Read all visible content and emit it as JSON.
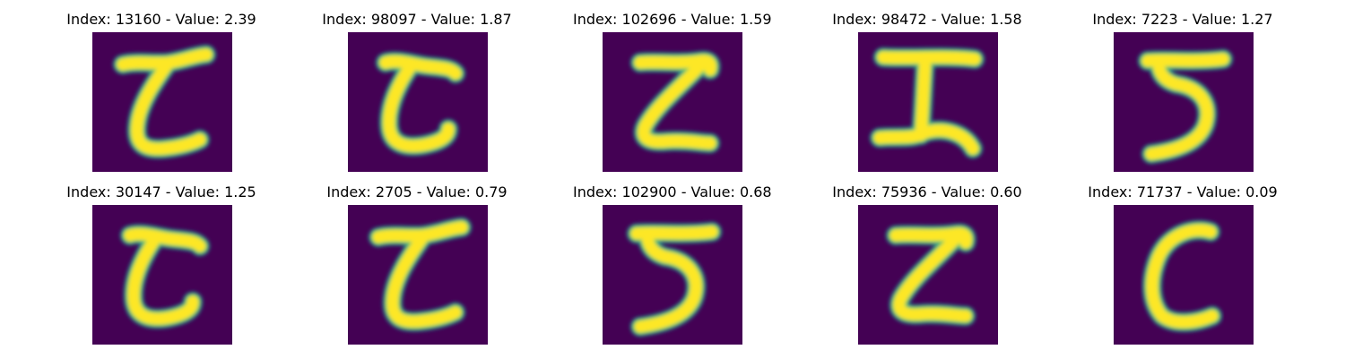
{
  "colors": {
    "background": "#440154",
    "stroke_edge": "#21918c",
    "stroke_core": "#fde725",
    "stroke_mid": "#5ec962"
  },
  "samples": [
    {
      "title": "Index: 13160 - Value: 2.39",
      "index": 13160,
      "value": 2.39,
      "glyph": "tilde-c"
    },
    {
      "title": "Index: 98097 - Value: 1.87",
      "index": 98097,
      "value": 1.87,
      "glyph": "fat-c"
    },
    {
      "title": "Index: 102696 - Value: 1.59",
      "index": 102696,
      "value": 1.59,
      "glyph": "z-shape"
    },
    {
      "title": "Index: 98472 - Value: 1.58",
      "index": 98472,
      "value": 1.58,
      "glyph": "i-beam"
    },
    {
      "title": "Index: 7223 - Value: 1.27",
      "index": 7223,
      "value": 1.27,
      "glyph": "five"
    },
    {
      "title": "Index: 30147 - Value: 1.25",
      "index": 30147,
      "value": 1.25,
      "glyph": "fat-c"
    },
    {
      "title": "Index: 2705 - Value: 0.79",
      "index": 2705,
      "value": 0.79,
      "glyph": "tilde-c"
    },
    {
      "title": "Index: 102900 - Value: 0.68",
      "index": 102900,
      "value": 0.68,
      "glyph": "five"
    },
    {
      "title": "Index: 75936 - Value: 0.60",
      "index": 75936,
      "value": 0.6,
      "glyph": "z-shape"
    },
    {
      "title": "Index: 71737 - Value: 0.09",
      "index": 71737,
      "value": 0.09,
      "glyph": "c-shape"
    }
  ]
}
